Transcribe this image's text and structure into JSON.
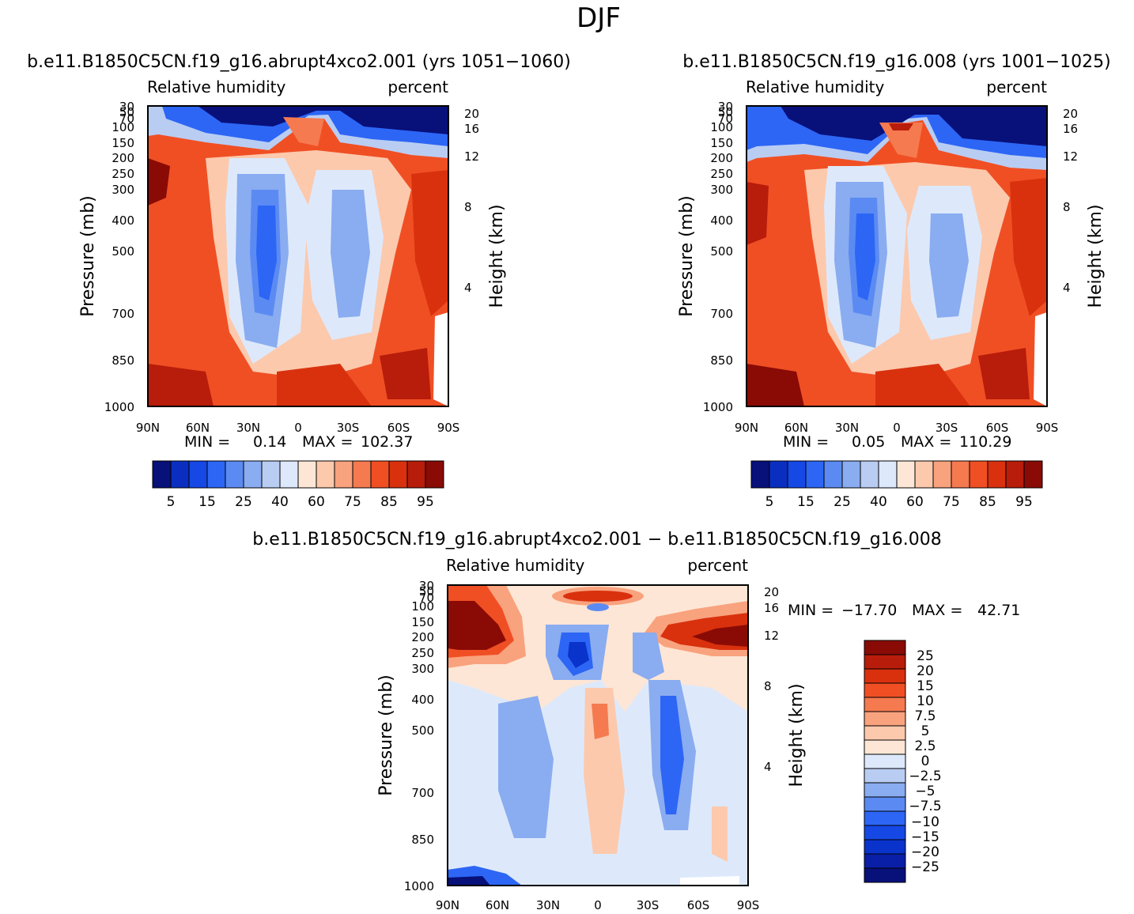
{
  "figure": {
    "title": "DJF"
  },
  "colors": {
    "abs_levels": [
      "#08107a",
      "#0a2fc0",
      "#1648e6",
      "#2d66f5",
      "#5b8bf2",
      "#8aacf0",
      "#b9cdf3",
      "#dde9fb",
      "#fde6d5",
      "#fcc9ad",
      "#f9a27e",
      "#f57a4f",
      "#f04f24",
      "#d9310e",
      "#b81c0a",
      "#8a0b05"
    ],
    "diff_levels": [
      "#08107a",
      "#0a1fa8",
      "#0a33cc",
      "#1648e6",
      "#2d66f5",
      "#5b8bf2",
      "#8aacf0",
      "#b9cdf3",
      "#dde9fb",
      "#fde6d5",
      "#fcc9ad",
      "#f9a27e",
      "#f57a4f",
      "#f04f24",
      "#d9310e",
      "#b81c0a",
      "#8a0b05"
    ]
  },
  "chart_data": [
    {
      "type": "heatmap",
      "panel": "top-left",
      "title": "b.e11.B1850C5CN.f19_g16.abrupt4xco2.001  (yrs 1051-1060)",
      "left_string": "Relative  humidity",
      "right_string": "percent",
      "ylabel": "Pressure  (mb)",
      "y2label": "Height  (km)",
      "x_ticks": [
        "90N",
        "60N",
        "30N",
        "0",
        "30S",
        "60S",
        "90S"
      ],
      "y_ticks": [
        "30",
        "50",
        "70",
        "100",
        "150",
        "200",
        "250",
        "300",
        "400",
        "500",
        "700",
        "850",
        "1000"
      ],
      "y2_ticks": [
        "20",
        "16",
        "12",
        "8",
        "4"
      ],
      "stats": {
        "min_label": "MIN  =",
        "min": "0.14",
        "max_label": "MAX  =",
        "max": "102.37"
      },
      "colorbar_labels": [
        "5",
        "15",
        "25",
        "40",
        "60",
        "75",
        "85",
        "95"
      ]
    },
    {
      "type": "heatmap",
      "panel": "top-right",
      "title": "b.e11.B1850C5CN.f19_g16.008  (yrs 1001-1025)",
      "left_string": "Relative  humidity",
      "right_string": "percent",
      "ylabel": "Pressure  (mb)",
      "y2label": "Height  (km)",
      "x_ticks": [
        "90N",
        "60N",
        "30N",
        "0",
        "30S",
        "60S",
        "90S"
      ],
      "y_ticks": [
        "30",
        "50",
        "70",
        "100",
        "150",
        "200",
        "250",
        "300",
        "400",
        "500",
        "700",
        "850",
        "1000"
      ],
      "y2_ticks": [
        "20",
        "16",
        "12",
        "8",
        "4"
      ],
      "stats": {
        "min_label": "MIN  =",
        "min": "0.05",
        "max_label": "MAX  =",
        "max": "110.29"
      },
      "colorbar_labels": [
        "5",
        "15",
        "25",
        "40",
        "60",
        "75",
        "85",
        "95"
      ]
    },
    {
      "type": "heatmap",
      "panel": "bottom",
      "title": "b.e11.B1850C5CN.f19_g16.abrupt4xco2.001  -  b.e11.B1850C5CN.f19_g16.008",
      "left_string": "Relative  humidity",
      "right_string": "percent",
      "ylabel": "Pressure  (mb)",
      "y2label": "Height  (km)",
      "x_ticks": [
        "90N",
        "60N",
        "30N",
        "0",
        "30S",
        "60S",
        "90S"
      ],
      "y_ticks": [
        "30",
        "50",
        "70",
        "100",
        "150",
        "200",
        "250",
        "300",
        "400",
        "500",
        "700",
        "850",
        "1000"
      ],
      "y2_ticks": [
        "20",
        "16",
        "12",
        "8",
        "4"
      ],
      "stats": {
        "min_label": "MIN  =",
        "min": "-17.70",
        "max_label": "MAX  =",
        "max": "42.71"
      },
      "colorbar_labels": [
        "25",
        "20",
        "15",
        "10",
        "7.5",
        "5",
        "2.5",
        "0",
        "-2.5",
        "-5",
        "-7.5",
        "-10",
        "-15",
        "-20",
        "-25"
      ]
    }
  ]
}
